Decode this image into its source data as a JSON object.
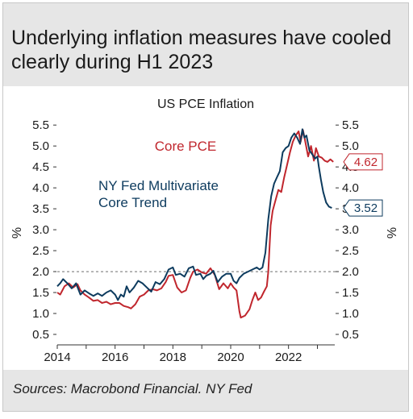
{
  "headline": "Underlying inflation measures have cooled clearly during H1 2023",
  "source": "Sources: Macrobond Financial. NY Fed",
  "colors": {
    "core_pce": "#c0262d",
    "ny_fed": "#0d3b5e",
    "reference": "#6e6e6e",
    "axis": "#333333"
  },
  "chart_data": {
    "type": "line",
    "title": "US PCE Inflation",
    "ylabel_left": "%",
    "ylabel_right": "%",
    "xlim": [
      2014,
      2023.6
    ],
    "ylim": [
      0.25,
      5.6
    ],
    "x_ticks": [
      "2014",
      "2016",
      "2018",
      "2020",
      "2022"
    ],
    "y_ticks": [
      "0.5",
      "1.0",
      "1.5",
      "2.0",
      "2.5",
      "3.0",
      "3.5",
      "4.0",
      "4.5",
      "5.0",
      "5.5"
    ],
    "reference_line": {
      "y": 2.0,
      "style": "dashed"
    },
    "series": [
      {
        "name": "Core PCE",
        "color": "#c0262d",
        "end_label": "4.62",
        "points": [
          [
            2014.0,
            1.5
          ],
          [
            2014.1,
            1.45
          ],
          [
            2014.25,
            1.65
          ],
          [
            2014.4,
            1.72
          ],
          [
            2014.55,
            1.62
          ],
          [
            2014.7,
            1.7
          ],
          [
            2014.8,
            1.55
          ],
          [
            2014.95,
            1.45
          ],
          [
            2015.1,
            1.38
          ],
          [
            2015.25,
            1.3
          ],
          [
            2015.4,
            1.32
          ],
          [
            2015.55,
            1.25
          ],
          [
            2015.7,
            1.28
          ],
          [
            2015.85,
            1.22
          ],
          [
            2016.0,
            1.25
          ],
          [
            2016.15,
            1.25
          ],
          [
            2016.3,
            1.18
          ],
          [
            2016.45,
            1.15
          ],
          [
            2016.55,
            1.12
          ],
          [
            2016.7,
            1.22
          ],
          [
            2016.85,
            1.4
          ],
          [
            2017.0,
            1.45
          ],
          [
            2017.15,
            1.55
          ],
          [
            2017.3,
            1.58
          ],
          [
            2017.45,
            1.55
          ],
          [
            2017.6,
            1.6
          ],
          [
            2017.75,
            1.75
          ],
          [
            2017.85,
            1.9
          ],
          [
            2018.0,
            1.92
          ],
          [
            2018.15,
            1.62
          ],
          [
            2018.3,
            1.5
          ],
          [
            2018.45,
            1.55
          ],
          [
            2018.6,
            1.85
          ],
          [
            2018.7,
            2.0
          ],
          [
            2018.85,
            2.05
          ],
          [
            2019.0,
            1.98
          ],
          [
            2019.15,
            1.95
          ],
          [
            2019.3,
            2.08
          ],
          [
            2019.45,
            1.92
          ],
          [
            2019.6,
            1.58
          ],
          [
            2019.75,
            1.72
          ],
          [
            2019.9,
            1.6
          ],
          [
            2020.0,
            1.72
          ],
          [
            2020.1,
            1.62
          ],
          [
            2020.2,
            1.55
          ],
          [
            2020.3,
            1.05
          ],
          [
            2020.35,
            0.9
          ],
          [
            2020.5,
            0.95
          ],
          [
            2020.65,
            1.1
          ],
          [
            2020.75,
            1.32
          ],
          [
            2020.85,
            1.5
          ],
          [
            2020.95,
            1.32
          ],
          [
            2021.05,
            1.38
          ],
          [
            2021.15,
            1.52
          ],
          [
            2021.25,
            1.65
          ],
          [
            2021.3,
            2.0
          ],
          [
            2021.38,
            3.1
          ],
          [
            2021.45,
            3.45
          ],
          [
            2021.55,
            3.7
          ],
          [
            2021.65,
            3.95
          ],
          [
            2021.75,
            3.9
          ],
          [
            2021.85,
            4.25
          ],
          [
            2021.95,
            4.55
          ],
          [
            2022.05,
            4.85
          ],
          [
            2022.15,
            5.1
          ],
          [
            2022.25,
            5.25
          ],
          [
            2022.35,
            5.35
          ],
          [
            2022.42,
            5.1
          ],
          [
            2022.5,
            5.38
          ],
          [
            2022.58,
            5.1
          ],
          [
            2022.68,
            4.75
          ],
          [
            2022.78,
            5.0
          ],
          [
            2022.88,
            4.65
          ],
          [
            2022.95,
            4.95
          ],
          [
            2023.05,
            4.75
          ],
          [
            2023.15,
            4.72
          ],
          [
            2023.25,
            4.65
          ],
          [
            2023.35,
            4.62
          ],
          [
            2023.45,
            4.68
          ],
          [
            2023.55,
            4.62
          ]
        ]
      },
      {
        "name": "NY Fed Multivariate Core Trend",
        "color": "#0d3b5e",
        "end_label": "3.52",
        "points": [
          [
            2014.0,
            1.65
          ],
          [
            2014.1,
            1.72
          ],
          [
            2014.2,
            1.82
          ],
          [
            2014.35,
            1.72
          ],
          [
            2014.5,
            1.6
          ],
          [
            2014.65,
            1.72
          ],
          [
            2014.8,
            1.45
          ],
          [
            2014.95,
            1.55
          ],
          [
            2015.1,
            1.48
          ],
          [
            2015.25,
            1.42
          ],
          [
            2015.4,
            1.48
          ],
          [
            2015.55,
            1.42
          ],
          [
            2015.7,
            1.5
          ],
          [
            2015.85,
            1.55
          ],
          [
            2016.0,
            1.45
          ],
          [
            2016.1,
            1.32
          ],
          [
            2016.2,
            1.45
          ],
          [
            2016.3,
            1.4
          ],
          [
            2016.4,
            1.65
          ],
          [
            2016.5,
            1.5
          ],
          [
            2016.65,
            1.62
          ],
          [
            2016.8,
            1.78
          ],
          [
            2016.95,
            1.72
          ],
          [
            2017.1,
            1.62
          ],
          [
            2017.25,
            1.52
          ],
          [
            2017.4,
            1.75
          ],
          [
            2017.55,
            1.7
          ],
          [
            2017.7,
            1.82
          ],
          [
            2017.85,
            2.05
          ],
          [
            2018.0,
            2.1
          ],
          [
            2018.1,
            1.92
          ],
          [
            2018.25,
            1.95
          ],
          [
            2018.4,
            1.88
          ],
          [
            2018.55,
            2.08
          ],
          [
            2018.7,
            2.12
          ],
          [
            2018.8,
            1.92
          ],
          [
            2018.95,
            1.95
          ],
          [
            2019.05,
            1.82
          ],
          [
            2019.15,
            1.9
          ],
          [
            2019.3,
            1.95
          ],
          [
            2019.4,
            2.02
          ],
          [
            2019.55,
            1.75
          ],
          [
            2019.7,
            1.88
          ],
          [
            2019.85,
            1.95
          ],
          [
            2020.0,
            1.95
          ],
          [
            2020.1,
            1.78
          ],
          [
            2020.2,
            1.72
          ],
          [
            2020.3,
            1.85
          ],
          [
            2020.45,
            1.95
          ],
          [
            2020.6,
            2.0
          ],
          [
            2020.75,
            2.05
          ],
          [
            2020.9,
            2.1
          ],
          [
            2021.0,
            2.05
          ],
          [
            2021.1,
            2.1
          ],
          [
            2021.2,
            2.45
          ],
          [
            2021.3,
            3.25
          ],
          [
            2021.4,
            3.8
          ],
          [
            2021.5,
            4.1
          ],
          [
            2021.6,
            4.25
          ],
          [
            2021.7,
            4.4
          ],
          [
            2021.8,
            4.85
          ],
          [
            2021.9,
            4.95
          ],
          [
            2022.0,
            5.0
          ],
          [
            2022.1,
            5.2
          ],
          [
            2022.2,
            5.3
          ],
          [
            2022.3,
            5.2
          ],
          [
            2022.4,
            5.05
          ],
          [
            2022.48,
            5.4
          ],
          [
            2022.55,
            5.2
          ],
          [
            2022.62,
            5.25
          ],
          [
            2022.72,
            4.9
          ],
          [
            2022.82,
            4.8
          ],
          [
            2022.92,
            4.7
          ],
          [
            2023.0,
            4.75
          ],
          [
            2023.05,
            4.5
          ],
          [
            2023.12,
            4.2
          ],
          [
            2023.2,
            3.9
          ],
          [
            2023.3,
            3.65
          ],
          [
            2023.4,
            3.55
          ],
          [
            2023.5,
            3.52
          ]
        ]
      }
    ]
  }
}
